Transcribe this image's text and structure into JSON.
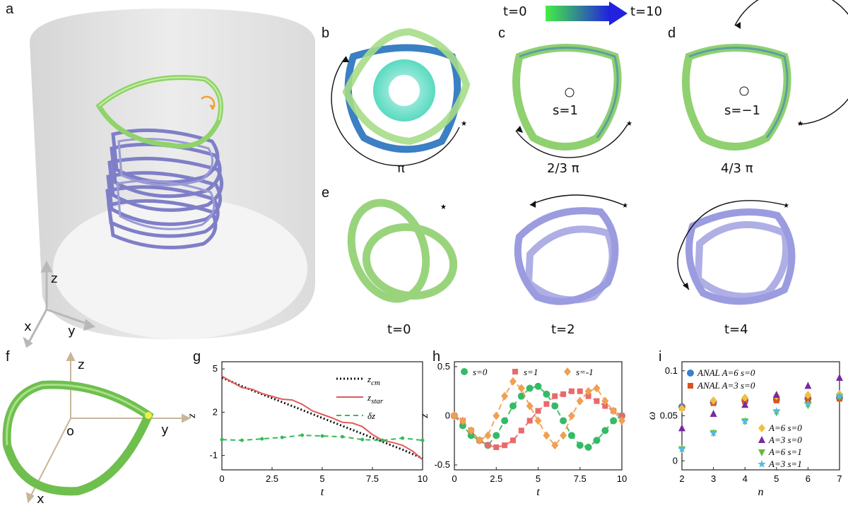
{
  "panels": {
    "a": "a",
    "b": "b",
    "c": "c",
    "d": "d",
    "e": "e",
    "f": "f",
    "g": "g",
    "h": "h",
    "i": "i"
  },
  "colorbar": {
    "left": "t=0",
    "right": "t=10",
    "start_color": "#44ee44",
    "end_color": "#2222dd"
  },
  "panel_a": {
    "axes": {
      "z": "z",
      "x": "x",
      "y": "y"
    }
  },
  "panel_b": {
    "angle": "π"
  },
  "panel_c": {
    "s_label": "s=1",
    "angle": "2/3 π"
  },
  "panel_d": {
    "s_label": "s=−1",
    "angle": "4/3 π"
  },
  "panel_e": {
    "times": [
      "t=0",
      "t=2",
      "t=4"
    ]
  },
  "panel_f": {
    "axes": {
      "z": "z",
      "o": "o",
      "y": "y",
      "x": "x"
    }
  },
  "chart_data": [
    {
      "id": "g",
      "type": "line",
      "xlabel": "t",
      "ylabel": "z",
      "xlim": [
        0,
        10
      ],
      "ylim": [
        -2,
        5.5
      ],
      "xticks": [
        "0",
        "2.5",
        "5",
        "7.5",
        "10"
      ],
      "yticks": [
        "5",
        "2",
        "-1"
      ],
      "ytick_values": [
        5,
        2,
        -1
      ],
      "series": [
        {
          "name": "z_cm",
          "label_main": "z",
          "label_sub": "cm",
          "color": "#111111",
          "style": "dotted",
          "x": [
            0,
            1,
            2,
            3,
            4,
            5,
            6,
            7,
            8,
            9,
            10
          ],
          "y": [
            4.4,
            3.8,
            3.25,
            2.7,
            2.15,
            1.6,
            1.05,
            0.5,
            -0.05,
            -0.6,
            -1.2
          ]
        },
        {
          "name": "z_star",
          "label_main": "z",
          "label_sub": "star",
          "color": "#e05a5a",
          "style": "solid",
          "x": [
            0,
            0.5,
            1,
            1.5,
            2,
            2.5,
            3,
            3.5,
            4,
            4.5,
            5,
            5.5,
            6,
            6.5,
            7,
            7.5,
            8,
            8.5,
            9,
            9.5,
            10
          ],
          "y": [
            4.5,
            4.1,
            3.7,
            3.6,
            3.3,
            3.1,
            2.9,
            2.85,
            2.55,
            2.1,
            1.85,
            1.6,
            1.3,
            1.25,
            1.0,
            0.45,
            0.05,
            -0.1,
            -0.3,
            -0.7,
            -1.3
          ]
        },
        {
          "name": "δz",
          "label_main": "δz",
          "label_sub": "",
          "color": "#33bb55",
          "style": "dashed",
          "x": [
            0,
            1,
            2,
            3,
            4,
            5,
            6,
            7,
            8,
            9,
            10
          ],
          "y": [
            0.1,
            0.05,
            0.15,
            0.25,
            0.4,
            0.35,
            0.3,
            0.1,
            0.05,
            0.2,
            0.05
          ]
        }
      ]
    },
    {
      "id": "h",
      "type": "scatter",
      "xlabel": "t",
      "ylabel": "z",
      "xlim": [
        0,
        10
      ],
      "ylim": [
        -0.55,
        0.55
      ],
      "xticks": [
        "0",
        "2.5",
        "5",
        "7.5",
        "10"
      ],
      "yticks": [
        "0.5",
        "0",
        "-0.5"
      ],
      "ytick_values": [
        0.5,
        0,
        -0.5
      ],
      "series": [
        {
          "name": "s=0",
          "color": "#33bb66",
          "marker": "circle",
          "x": [
            0,
            0.5,
            1,
            1.5,
            2,
            2.5,
            3,
            3.5,
            4,
            4.5,
            5,
            5.5,
            6,
            6.5,
            7,
            7.5,
            8,
            8.5,
            9,
            9.5,
            10
          ],
          "y": [
            0.0,
            -0.1,
            -0.2,
            -0.25,
            -0.3,
            -0.2,
            -0.05,
            0.1,
            0.2,
            0.28,
            0.3,
            0.22,
            0.1,
            -0.05,
            -0.2,
            -0.3,
            -0.32,
            -0.25,
            -0.15,
            -0.05,
            0.0
          ]
        },
        {
          "name": "s=1",
          "color": "#e86a6a",
          "marker": "square",
          "x": [
            0,
            0.5,
            1,
            1.5,
            2,
            2.5,
            3,
            3.5,
            4,
            4.5,
            5,
            5.5,
            6,
            6.5,
            7,
            7.5,
            8,
            8.5,
            9,
            9.5,
            10
          ],
          "y": [
            0.0,
            -0.05,
            -0.15,
            -0.25,
            -0.3,
            -0.32,
            -0.3,
            -0.25,
            -0.15,
            -0.05,
            0.05,
            0.12,
            0.2,
            0.22,
            0.25,
            0.25,
            0.2,
            0.15,
            0.1,
            0.05,
            0.0
          ]
        },
        {
          "name": "s=-1",
          "color": "#f0a050",
          "marker": "diamond",
          "x": [
            0,
            0.5,
            1,
            1.5,
            2,
            2.5,
            3,
            3.5,
            4,
            4.5,
            5,
            5.5,
            6,
            6.5,
            7,
            7.5,
            8,
            8.5,
            9,
            9.5,
            10
          ],
          "y": [
            0.0,
            -0.05,
            -0.15,
            -0.25,
            -0.2,
            0.0,
            0.2,
            0.35,
            0.28,
            0.1,
            -0.05,
            -0.2,
            -0.3,
            -0.2,
            0.0,
            0.15,
            0.25,
            0.28,
            0.15,
            0.05,
            -0.05
          ]
        }
      ]
    },
    {
      "id": "i",
      "type": "scatter",
      "xlabel": "n",
      "ylabel": "ω",
      "xlim": [
        2,
        7
      ],
      "ylim": [
        -0.01,
        0.11
      ],
      "xticks": [
        "2",
        "3",
        "4",
        "5",
        "6",
        "7"
      ],
      "yticks": [
        "0.1",
        "0.05",
        "0"
      ],
      "ytick_values": [
        0.1,
        0.05,
        0
      ],
      "series": [
        {
          "name": "ANAL A=6 s=0",
          "color": "#3a7fd0",
          "marker": "circle",
          "x": [
            2,
            3,
            4,
            5,
            6,
            7
          ],
          "y": [
            0.06,
            0.065,
            0.067,
            0.068,
            0.069,
            0.07
          ]
        },
        {
          "name": "ANAL A=3 s=0",
          "color": "#d9531e",
          "marker": "square",
          "x": [
            2,
            3,
            4,
            5,
            6,
            7
          ],
          "y": [
            0.059,
            0.064,
            0.066,
            0.067,
            0.068,
            0.069
          ]
        },
        {
          "name": "A=6 s=0",
          "color": "#f0c040",
          "marker": "diamond",
          "x": [
            2,
            3,
            4,
            5,
            6,
            7
          ],
          "y": [
            0.058,
            0.067,
            0.07,
            0.072,
            0.073,
            0.074
          ]
        },
        {
          "name": "A=3 s=0",
          "color": "#7a2aa0",
          "marker": "triangle-up",
          "x": [
            2,
            3,
            4,
            5,
            6,
            7
          ],
          "y": [
            0.036,
            0.052,
            0.062,
            0.073,
            0.083,
            0.092
          ]
        },
        {
          "name": "A=6 s=1",
          "color": "#66bb33",
          "marker": "triangle-down",
          "x": [
            2,
            3,
            4,
            5,
            6,
            7
          ],
          "y": [
            0.013,
            0.031,
            0.044,
            0.054,
            0.062,
            0.071
          ]
        },
        {
          "name": "A=3 s=1",
          "color": "#55bbdd",
          "marker": "star",
          "x": [
            2,
            3,
            4,
            5,
            6,
            7
          ],
          "y": [
            0.013,
            0.031,
            0.044,
            0.055,
            0.063,
            0.072
          ]
        }
      ]
    }
  ]
}
